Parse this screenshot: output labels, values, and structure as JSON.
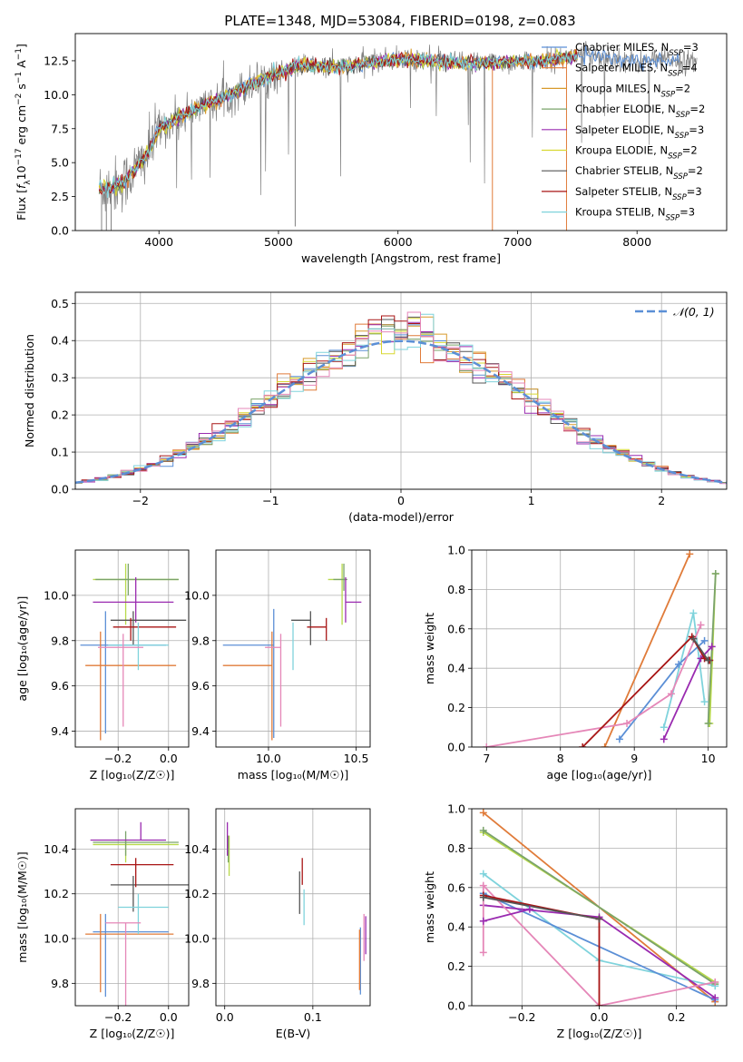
{
  "figure_title": "PLATE=1348, MJD=53084, FIBERID=0198, z=0.083",
  "colors": {
    "chabrier_miles": "#5b8fd6",
    "salpeter_miles": "#e07b39",
    "kroupa_miles": "#d89a2b",
    "chabrier_elodie": "#7aa36a",
    "salpeter_elodie": "#9a2bb0",
    "kroupa_elodie": "#d8d832",
    "chabrier_stelib": "#555555",
    "salpeter_stelib": "#a81515",
    "kroupa_stelib": "#7fd3dc",
    "data": "#808080",
    "pink": "#e587b8",
    "lime": "#b8d94a"
  },
  "chart_data": [
    {
      "type": "line",
      "id": "spectrum",
      "title": "PLATE=1348, MJD=53084, FIBERID=0198, z=0.083",
      "xlabel": "wavelength [Angstrom, rest frame]",
      "ylabel_parts": [
        "Flux [",
        "f",
        "λ",
        "10",
        "−17",
        " erg cm",
        "−2",
        " s",
        "−1",
        " A",
        "−1",
        "]"
      ],
      "xlim": [
        3300,
        8750
      ],
      "ylim": [
        0,
        14.5
      ],
      "xticks": [
        4000,
        5000,
        6000,
        7000,
        8000
      ],
      "yticks": [
        0.0,
        2.5,
        5.0,
        7.5,
        10.0,
        12.5
      ],
      "grid": false,
      "legend_position": "top-right",
      "series": [
        {
          "name": "Chabrier MILES, N",
          "sub": "SSP",
          "suffix": "=3",
          "color": "#5b8fd6"
        },
        {
          "name": "Salpeter MILES, N",
          "sub": "SSP",
          "suffix": "=4",
          "color": "#e07b39"
        },
        {
          "name": "Kroupa MILES, N",
          "sub": "SSP",
          "suffix": "=2",
          "color": "#d89a2b"
        },
        {
          "name": "Chabrier ELODIE, N",
          "sub": "SSP",
          "suffix": "=2",
          "color": "#7aa36a"
        },
        {
          "name": "Salpeter ELODIE, N",
          "sub": "SSP",
          "suffix": "=3",
          "color": "#9a2bb0"
        },
        {
          "name": "Kroupa ELODIE, N",
          "sub": "SSP",
          "suffix": "=2",
          "color": "#d8d832"
        },
        {
          "name": "Chabrier STELIB, N",
          "sub": "SSP",
          "suffix": "=2",
          "color": "#555555"
        },
        {
          "name": "Salpeter STELIB, N",
          "sub": "SSP",
          "suffix": "=3",
          "color": "#a81515"
        },
        {
          "name": "Kroupa STELIB, N",
          "sub": "SSP",
          "suffix": "=3",
          "color": "#7fd3dc"
        }
      ],
      "continuum": {
        "x": [
          3500,
          3700,
          3900,
          4000,
          4200,
          4400,
          4600,
          4800,
          5000,
          5200,
          5500,
          5800,
          6000,
          6300,
          6600,
          7000,
          7300,
          7600,
          8000,
          8300,
          8500
        ],
        "y": [
          3.0,
          3.5,
          5.5,
          7.5,
          8.5,
          9.3,
          10.0,
          10.9,
          11.6,
          12.2,
          12.0,
          12.4,
          12.6,
          12.5,
          12.3,
          12.4,
          12.6,
          13.0,
          12.4,
          12.6,
          12.3
        ]
      }
    },
    {
      "type": "histogram",
      "id": "residuals",
      "xlabel": "(data-model)/error",
      "ylabel": "Normed distribution",
      "xlim": [
        -2.5,
        2.5
      ],
      "ylim": [
        0,
        0.53
      ],
      "xticks": [
        -2,
        -1,
        0,
        1,
        2
      ],
      "yticks": [
        0.0,
        0.1,
        0.2,
        0.3,
        0.4,
        0.5
      ],
      "grid": true,
      "legend_label": "𝒩(0, 1)",
      "legend_position": "top-right",
      "bin_width": 0.1
    },
    {
      "type": "scatter",
      "id": "age_vs_Z",
      "xlabel": "Z [log₁₀(Z/Z☉)]",
      "ylabel": "age  [log₁₀(age/yr)]",
      "xlim": [
        -0.37,
        0.08
      ],
      "ylim": [
        9.33,
        10.2
      ],
      "xticks": [
        -0.2,
        0.0
      ],
      "yticks": [
        9.4,
        9.6,
        9.8,
        10.0
      ],
      "grid": true,
      "points": [
        {
          "color": "#5b8fd6",
          "x": -0.25,
          "xerr": [
            0.1,
            0.24
          ],
          "y": 9.78,
          "yerr": [
            0.39,
            0.15
          ]
        },
        {
          "color": "#e07b39",
          "x": -0.27,
          "xerr": [
            0.06,
            0.3
          ],
          "y": 9.69,
          "yerr": [
            0.33,
            0.15
          ]
        },
        {
          "color": "#b8d94a",
          "x": -0.17,
          "xerr": [
            0.13,
            0.21
          ],
          "y": 10.07,
          "yerr": [
            0.2,
            0.07
          ]
        },
        {
          "color": "#7aa36a",
          "x": -0.16,
          "xerr": [
            0.13,
            0.2
          ],
          "y": 10.07,
          "yerr": [
            0.07,
            0.07
          ]
        },
        {
          "color": "#9a2bb0",
          "x": -0.13,
          "xerr": [
            0.17,
            0.15
          ],
          "y": 9.97,
          "yerr": [
            0.09,
            0.11
          ]
        },
        {
          "color": "#555555",
          "x": -0.14,
          "xerr": [
            0.09,
            0.21
          ],
          "y": 9.89,
          "yerr": [
            0.11,
            0.04
          ]
        },
        {
          "color": "#a81515",
          "x": -0.15,
          "xerr": [
            0.07,
            0.18
          ],
          "y": 9.86,
          "yerr": [
            0.06,
            0.04
          ]
        },
        {
          "color": "#7fd3dc",
          "x": -0.12,
          "xerr": [
            0.12,
            0.12
          ],
          "y": 9.78,
          "yerr": [
            0.11,
            0.1
          ]
        },
        {
          "color": "#e587b8",
          "x": -0.18,
          "xerr": [
            0.1,
            0.08
          ],
          "y": 9.77,
          "yerr": [
            0.35,
            0.06
          ]
        }
      ]
    },
    {
      "type": "scatter",
      "id": "age_vs_mass",
      "xlabel": "mass [log₁₀(M/M☉)]",
      "ylabel": "",
      "xlim": [
        9.7,
        10.58
      ],
      "ylim": [
        9.33,
        10.2
      ],
      "xticks": [
        10.0,
        10.5
      ],
      "yticks": [
        9.4,
        9.6,
        9.8,
        10.0
      ],
      "grid": true,
      "points": [
        {
          "color": "#5b8fd6",
          "x": 10.03,
          "xerr": [
            0.29,
            0.0
          ],
          "y": 9.78,
          "yerr": [
            0.41,
            0.16
          ]
        },
        {
          "color": "#e07b39",
          "x": 10.02,
          "xerr": [
            0.28,
            0.0
          ],
          "y": 9.69,
          "yerr": [
            0.33,
            0.15
          ]
        },
        {
          "color": "#b8d94a",
          "x": 10.42,
          "xerr": [
            0.08,
            0.02
          ],
          "y": 10.07,
          "yerr": [
            0.2,
            0.07
          ]
        },
        {
          "color": "#7aa36a",
          "x": 10.43,
          "xerr": [
            0.06,
            0.02
          ],
          "y": 10.07,
          "yerr": [
            0.05,
            0.07
          ]
        },
        {
          "color": "#9a2bb0",
          "x": 10.44,
          "xerr": [
            0.0,
            0.09
          ],
          "y": 9.97,
          "yerr": [
            0.09,
            0.11
          ]
        },
        {
          "color": "#555555",
          "x": 10.24,
          "xerr": [
            0.11,
            0.0
          ],
          "y": 9.89,
          "yerr": [
            0.11,
            0.04
          ]
        },
        {
          "color": "#a81515",
          "x": 10.33,
          "xerr": [
            0.11,
            0.0
          ],
          "y": 9.86,
          "yerr": [
            0.06,
            0.04
          ]
        },
        {
          "color": "#7fd3dc",
          "x": 10.14,
          "xerr": [
            0.0,
            0.0
          ],
          "y": 9.78,
          "yerr": [
            0.11,
            0.1
          ]
        },
        {
          "color": "#e587b8",
          "x": 10.07,
          "xerr": [
            0.09,
            0.0
          ],
          "y": 9.77,
          "yerr": [
            0.35,
            0.06
          ]
        }
      ]
    },
    {
      "type": "line",
      "id": "massweight_vs_age",
      "xlabel": "age  [log₁₀(age/yr)]",
      "ylabel": "mass weight",
      "xlim": [
        6.8,
        10.25
      ],
      "ylim": [
        0,
        1.0
      ],
      "xticks": [
        7,
        8,
        9,
        10
      ],
      "yticks": [
        0.0,
        0.2,
        0.4,
        0.6,
        0.8,
        1.0
      ],
      "grid": true,
      "series": [
        {
          "color": "#e07b39",
          "x": [
            8.6,
            9.75
          ],
          "y": [
            0.0,
            0.98
          ]
        },
        {
          "color": "#b8d94a",
          "x": [
            10.02,
            10.1
          ],
          "y": [
            0.12,
            0.88
          ]
        },
        {
          "color": "#7aa36a",
          "x": [
            10.0,
            10.1
          ],
          "y": [
            0.12,
            0.88
          ]
        },
        {
          "color": "#7fd3dc",
          "x": [
            9.4,
            9.8,
            9.95
          ],
          "y": [
            0.1,
            0.68,
            0.23
          ]
        },
        {
          "color": "#5b8fd6",
          "x": [
            8.8,
            9.6,
            9.95
          ],
          "y": [
            0.04,
            0.42,
            0.54
          ]
        },
        {
          "color": "#9a2bb0",
          "x": [
            9.4,
            9.9,
            10.05
          ],
          "y": [
            0.04,
            0.45,
            0.51
          ]
        },
        {
          "color": "#e587b8",
          "x": [
            7.0,
            8.9,
            9.5,
            9.9
          ],
          "y": [
            0.0,
            0.12,
            0.27,
            0.62
          ]
        },
        {
          "color": "#a81515",
          "x": [
            8.3,
            9.78,
            9.95,
            10.02
          ],
          "y": [
            0.0,
            0.56,
            0.45,
            0.44
          ]
        },
        {
          "color": "#555555",
          "x": [
            9.8,
            10.0
          ],
          "y": [
            0.55,
            0.44
          ]
        }
      ]
    },
    {
      "type": "scatter",
      "id": "mass_vs_Z",
      "xlabel": "Z [log₁₀(Z/Z☉)]",
      "ylabel": "mass [log₁₀(M/M☉)]",
      "xlim": [
        -0.37,
        0.08
      ],
      "ylim": [
        9.7,
        10.58
      ],
      "xticks": [
        -0.2,
        0.0
      ],
      "yticks": [
        9.8,
        10.0,
        10.2,
        10.4
      ],
      "grid": true,
      "points": [
        {
          "color": "#5b8fd6",
          "x": -0.25,
          "xerr": [
            0.05,
            0.25
          ],
          "y": 10.03,
          "yerr": [
            0.29,
            0.08
          ]
        },
        {
          "color": "#e07b39",
          "x": -0.27,
          "xerr": [
            0.06,
            0.29
          ],
          "y": 10.02,
          "yerr": [
            0.26,
            0.09
          ]
        },
        {
          "color": "#b8d94a",
          "x": -0.17,
          "xerr": [
            0.13,
            0.21
          ],
          "y": 10.42,
          "yerr": [
            0.08,
            0.02
          ]
        },
        {
          "color": "#7aa36a",
          "x": -0.17,
          "xerr": [
            0.13,
            0.21
          ],
          "y": 10.43,
          "yerr": [
            0.06,
            0.05
          ]
        },
        {
          "color": "#9a2bb0",
          "x": -0.11,
          "xerr": [
            0.2,
            0.1
          ],
          "y": 10.44,
          "yerr": [
            0.0,
            0.08
          ]
        },
        {
          "color": "#555555",
          "x": -0.14,
          "xerr": [
            0.09,
            0.23
          ],
          "y": 10.24,
          "yerr": [
            0.12,
            0.04
          ]
        },
        {
          "color": "#a81515",
          "x": -0.13,
          "xerr": [
            0.1,
            0.15
          ],
          "y": 10.33,
          "yerr": [
            0.1,
            0.03
          ]
        },
        {
          "color": "#7fd3dc",
          "x": -0.12,
          "xerr": [
            0.08,
            0.12
          ],
          "y": 10.14,
          "yerr": [
            0.12,
            0.06
          ]
        },
        {
          "color": "#e587b8",
          "x": -0.17,
          "xerr": [
            0.08,
            0.06
          ],
          "y": 10.07,
          "yerr": [
            0.37,
            0.0
          ]
        }
      ]
    },
    {
      "type": "scatter",
      "id": "mass_vs_ebv",
      "xlabel": "E(B-V)",
      "ylabel": "",
      "xlim": [
        -0.01,
        0.165
      ],
      "ylim": [
        9.7,
        10.58
      ],
      "xticks": [
        0.0,
        0.1
      ],
      "yticks": [
        9.8,
        10.0,
        10.2,
        10.4
      ],
      "grid": true,
      "points": [
        {
          "color": "#b8d94a",
          "x": 0.005,
          "y": 10.4,
          "yerr": [
            0.12,
            0.06
          ]
        },
        {
          "color": "#7aa36a",
          "x": 0.004,
          "y": 10.41,
          "yerr": [
            0.07,
            0.05
          ]
        },
        {
          "color": "#9a2bb0",
          "x": 0.003,
          "y": 10.44,
          "yerr": [
            0.07,
            0.08
          ]
        },
        {
          "color": "#555555",
          "x": 0.085,
          "y": 10.24,
          "yerr": [
            0.13,
            0.06
          ]
        },
        {
          "color": "#a81515",
          "x": 0.088,
          "y": 10.27,
          "yerr": [
            0.03,
            0.09
          ]
        },
        {
          "color": "#7fd3dc",
          "x": 0.09,
          "y": 10.14,
          "yerr": [
            0.08,
            0.08
          ]
        },
        {
          "color": "#5b8fd6",
          "x": 0.154,
          "y": 10.03,
          "yerr": [
            0.28,
            0.02
          ]
        },
        {
          "color": "#e07b39",
          "x": 0.153,
          "y": 10.02,
          "yerr": [
            0.25,
            0.02
          ]
        },
        {
          "color": "#e587b8",
          "x": 0.158,
          "y": 10.02,
          "yerr": [
            0.12,
            0.09
          ]
        },
        {
          "color": "#9a2bb0",
          "x": 0.16,
          "y": 10.0,
          "yerr": [
            0.07,
            0.1
          ]
        }
      ]
    },
    {
      "type": "line",
      "id": "massweight_vs_Z",
      "xlabel": "Z [log₁₀(Z/Z☉)]",
      "ylabel": "mass weight",
      "xlim": [
        -0.33,
        0.33
      ],
      "ylim": [
        0,
        1.0
      ],
      "xticks": [
        -0.2,
        0.0,
        0.2
      ],
      "yticks": [
        0.0,
        0.2,
        0.4,
        0.6,
        0.8,
        1.0
      ],
      "grid": true,
      "series": [
        {
          "color": "#e07b39",
          "x": [
            -0.3,
            0.3
          ],
          "y": [
            0.98,
            0.02
          ]
        },
        {
          "color": "#b8d94a",
          "x": [
            -0.3,
            0.3
          ],
          "y": [
            0.88,
            0.12
          ]
        },
        {
          "color": "#7aa36a",
          "x": [
            -0.3,
            0.3
          ],
          "y": [
            0.89,
            0.11
          ]
        },
        {
          "color": "#7fd3dc",
          "x": [
            -0.3,
            0.0,
            0.3
          ],
          "y": [
            0.67,
            0.23,
            0.1
          ]
        },
        {
          "color": "#5b8fd6",
          "x": [
            -0.3,
            0.3
          ],
          "y": [
            0.57,
            0.03
          ]
        },
        {
          "color": "#9a2bb0",
          "x": [
            -0.3,
            0.0,
            0.3
          ],
          "y": [
            0.51,
            0.45,
            0.04
          ]
        },
        {
          "color": "#e587b8",
          "x": [
            -0.3,
            -0.3,
            0.0,
            0.3
          ],
          "y": [
            0.27,
            0.61,
            0.0,
            0.12
          ]
        },
        {
          "color": "#a81515",
          "x": [
            -0.3,
            0.0,
            0.0
          ],
          "y": [
            0.56,
            0.44,
            0.0
          ]
        },
        {
          "color": "#555555",
          "x": [
            -0.3,
            0.0
          ],
          "y": [
            0.55,
            0.44
          ]
        },
        {
          "color": "#9a2bb0",
          "x": [
            -0.3,
            -0.18
          ],
          "y": [
            0.43,
            0.49
          ]
        }
      ]
    }
  ]
}
